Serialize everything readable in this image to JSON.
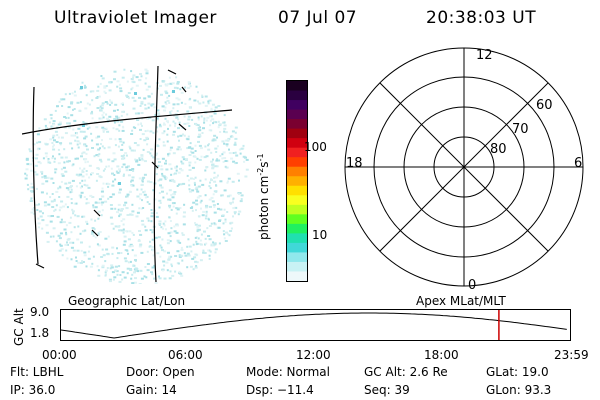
{
  "header": {
    "instrument": "Ultraviolet Imager",
    "date": "07 Jul 07",
    "time": "20:38:03 UT"
  },
  "colorbar": {
    "unit_label": "photon cm",
    "unit_sup1": "-2",
    "unit_mid": "s",
    "unit_sup2": "-1",
    "tick_100": "100",
    "tick_10": "10",
    "colors": [
      "#1a0020",
      "#2a0040",
      "#400060",
      "#5a0050",
      "#7a0030",
      "#a00010",
      "#d00010",
      "#f02020",
      "#ff4000",
      "#ff8000",
      "#ffb000",
      "#ffe000",
      "#f8ff20",
      "#c0ff20",
      "#60ff20",
      "#20f060",
      "#20e0b0",
      "#40d8d8",
      "#90e8ec",
      "#c8f2f4",
      "#eef8fa"
    ]
  },
  "polar_plot": {
    "mlt_top": "12",
    "mlt_left": "18",
    "mlt_right": "6",
    "mlt_bottom": "0",
    "lat_60": "60",
    "lat_70": "70",
    "lat_80": "80"
  },
  "altitude_panel": {
    "left_label": "Geographic Lat/Lon",
    "right_label": "Apex  MLat/MLT",
    "axis_title": "GC Alt",
    "y_top": "9.0",
    "y_bottom": "1.8",
    "marker_time": "20:38",
    "marker_color": "#cc0000",
    "time_ticks": [
      "00:00",
      "06:00",
      "12:00",
      "18:00",
      "23:59"
    ]
  },
  "status": {
    "flt": "Flt: LBHL",
    "ip": "IP: 36.0",
    "door": "Door: Open",
    "gain": "Gain: 14",
    "mode": "Mode: Normal",
    "dsp": "Dsp:  −11.4",
    "gc_alt": "GC Alt: 2.6 Re",
    "seq": "Seq: 39",
    "glat": "GLat:  19.0",
    "glon": "GLon:  93.3"
  }
}
